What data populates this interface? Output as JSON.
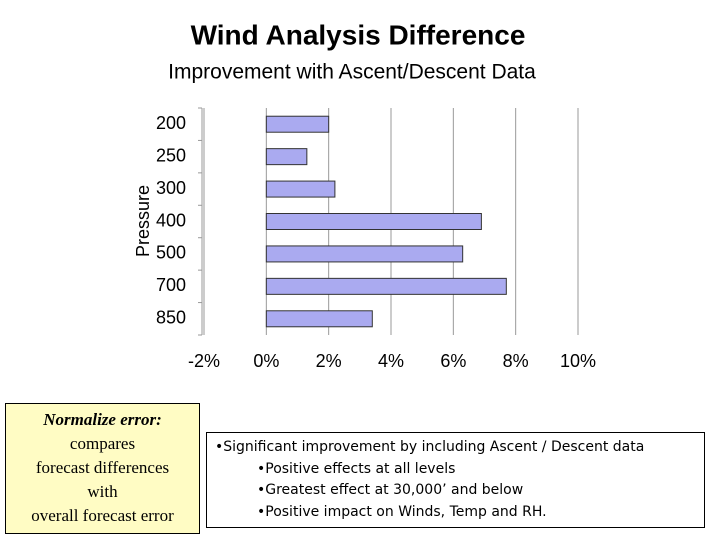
{
  "chart_data": {
    "type": "barh",
    "title": "Wind Analysis Difference",
    "subtitle": "Improvement with Ascent/Descent Data",
    "y_label": "Pressure",
    "categories": [
      "200",
      "250",
      "300",
      "400",
      "500",
      "700",
      "850"
    ],
    "values": [
      2.0,
      1.3,
      2.2,
      6.9,
      6.3,
      7.7,
      3.4
    ],
    "color": "#aaaaf0",
    "xlim": [
      -2,
      10
    ],
    "xticks": [
      {
        "value": -2,
        "label": "-2%"
      },
      {
        "value": 0,
        "label": "0%"
      },
      {
        "value": 2,
        "label": "2%"
      },
      {
        "value": 4,
        "label": "4%"
      },
      {
        "value": 6,
        "label": "6%"
      },
      {
        "value": 8,
        "label": "8%"
      },
      {
        "value": 10,
        "label": "10%"
      }
    ],
    "grid": true
  },
  "note_box": {
    "heading": "Normalize error:",
    "lines": [
      "compares",
      "forecast differences",
      "with",
      "overall forecast error"
    ]
  },
  "bullets_box": {
    "lines": [
      "•Significant improvement by including Ascent / Descent data",
      "•Positive effects at all levels",
      "•Greatest effect at 30,000’ and below",
      "•Positive impact on Winds, Temp and RH."
    ]
  }
}
